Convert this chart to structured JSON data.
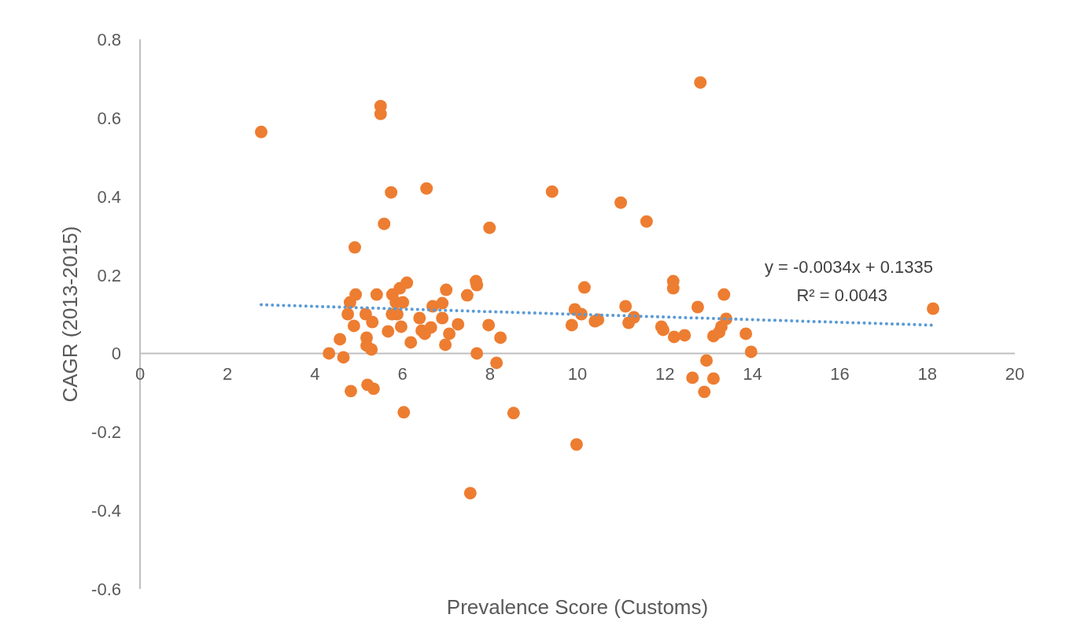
{
  "chart_data": {
    "type": "scatter",
    "xlabel": "Prevalence Score (Customs)",
    "ylabel": "CAGR (2013-2015)",
    "xlim": [
      0,
      20
    ],
    "xticks": [
      0,
      2,
      4,
      6,
      8,
      10,
      12,
      14,
      16,
      18,
      20
    ],
    "ylim": [
      -0.6,
      0.8
    ],
    "yticks": [
      -0.6,
      -0.4,
      -0.2,
      0,
      0.2,
      0.4,
      0.6,
      0.8
    ],
    "grid": false,
    "annotations": [
      "y = -0.0034x + 0.1335",
      "R² = 0.0043"
    ],
    "series": [
      {
        "marker": "circle",
        "color": "#ed7d31",
        "x": [
          2.77,
          4.32,
          4.57,
          4.65,
          4.75,
          4.8,
          4.82,
          4.89,
          4.91,
          4.93,
          5.16,
          5.18,
          5.18,
          5.2,
          5.29,
          5.31,
          5.34,
          5.41,
          5.5,
          5.5,
          5.58,
          5.67,
          5.74,
          5.76,
          5.77,
          5.85,
          5.88,
          5.94,
          5.97,
          6.01,
          6.03,
          6.1,
          6.19,
          6.39,
          6.44,
          6.51,
          6.55,
          6.65,
          6.69,
          6.91,
          6.91,
          6.98,
          7.0,
          7.07,
          7.27,
          7.48,
          7.55,
          7.68,
          7.7,
          7.7,
          7.97,
          7.99,
          8.15,
          8.24,
          8.54,
          9.42,
          9.87,
          9.94,
          9.98,
          10.09,
          10.16,
          10.4,
          10.47,
          10.99,
          11.1,
          11.17,
          11.29,
          11.58,
          11.92,
          11.96,
          12.19,
          12.19,
          12.21,
          12.45,
          12.63,
          12.75,
          12.81,
          12.9,
          12.95,
          13.11,
          13.11,
          13.24,
          13.29,
          13.35,
          13.4,
          13.85,
          13.97,
          18.13
        ],
        "values": [
          0.564,
          0.0,
          0.036,
          -0.01,
          0.1,
          0.13,
          -0.096,
          0.07,
          0.27,
          0.15,
          0.1,
          0.04,
          0.02,
          -0.08,
          0.01,
          0.08,
          -0.09,
          0.15,
          0.63,
          0.61,
          0.33,
          0.056,
          0.41,
          0.1,
          0.15,
          0.13,
          0.1,
          0.166,
          0.068,
          0.13,
          -0.15,
          0.18,
          0.028,
          0.09,
          0.058,
          0.05,
          0.42,
          0.066,
          0.12,
          0.128,
          0.09,
          0.022,
          0.162,
          0.05,
          0.074,
          0.148,
          -0.356,
          0.184,
          0.174,
          0.0,
          0.072,
          0.32,
          -0.024,
          0.04,
          -0.152,
          0.412,
          0.072,
          0.112,
          -0.232,
          0.1,
          0.168,
          0.082,
          0.086,
          0.384,
          0.12,
          0.078,
          0.092,
          0.336,
          0.068,
          0.06,
          0.184,
          0.166,
          0.042,
          0.046,
          -0.062,
          0.118,
          0.69,
          -0.098,
          -0.018,
          0.044,
          -0.064,
          0.054,
          0.068,
          0.15,
          0.088,
          0.05,
          0.004,
          0.114
        ]
      },
      {
        "type": "line",
        "color": "#5b9bd5",
        "line_style": "dotted",
        "x": [
          2.77,
          18.13
        ],
        "values": [
          0.124,
          0.072
        ]
      }
    ]
  }
}
